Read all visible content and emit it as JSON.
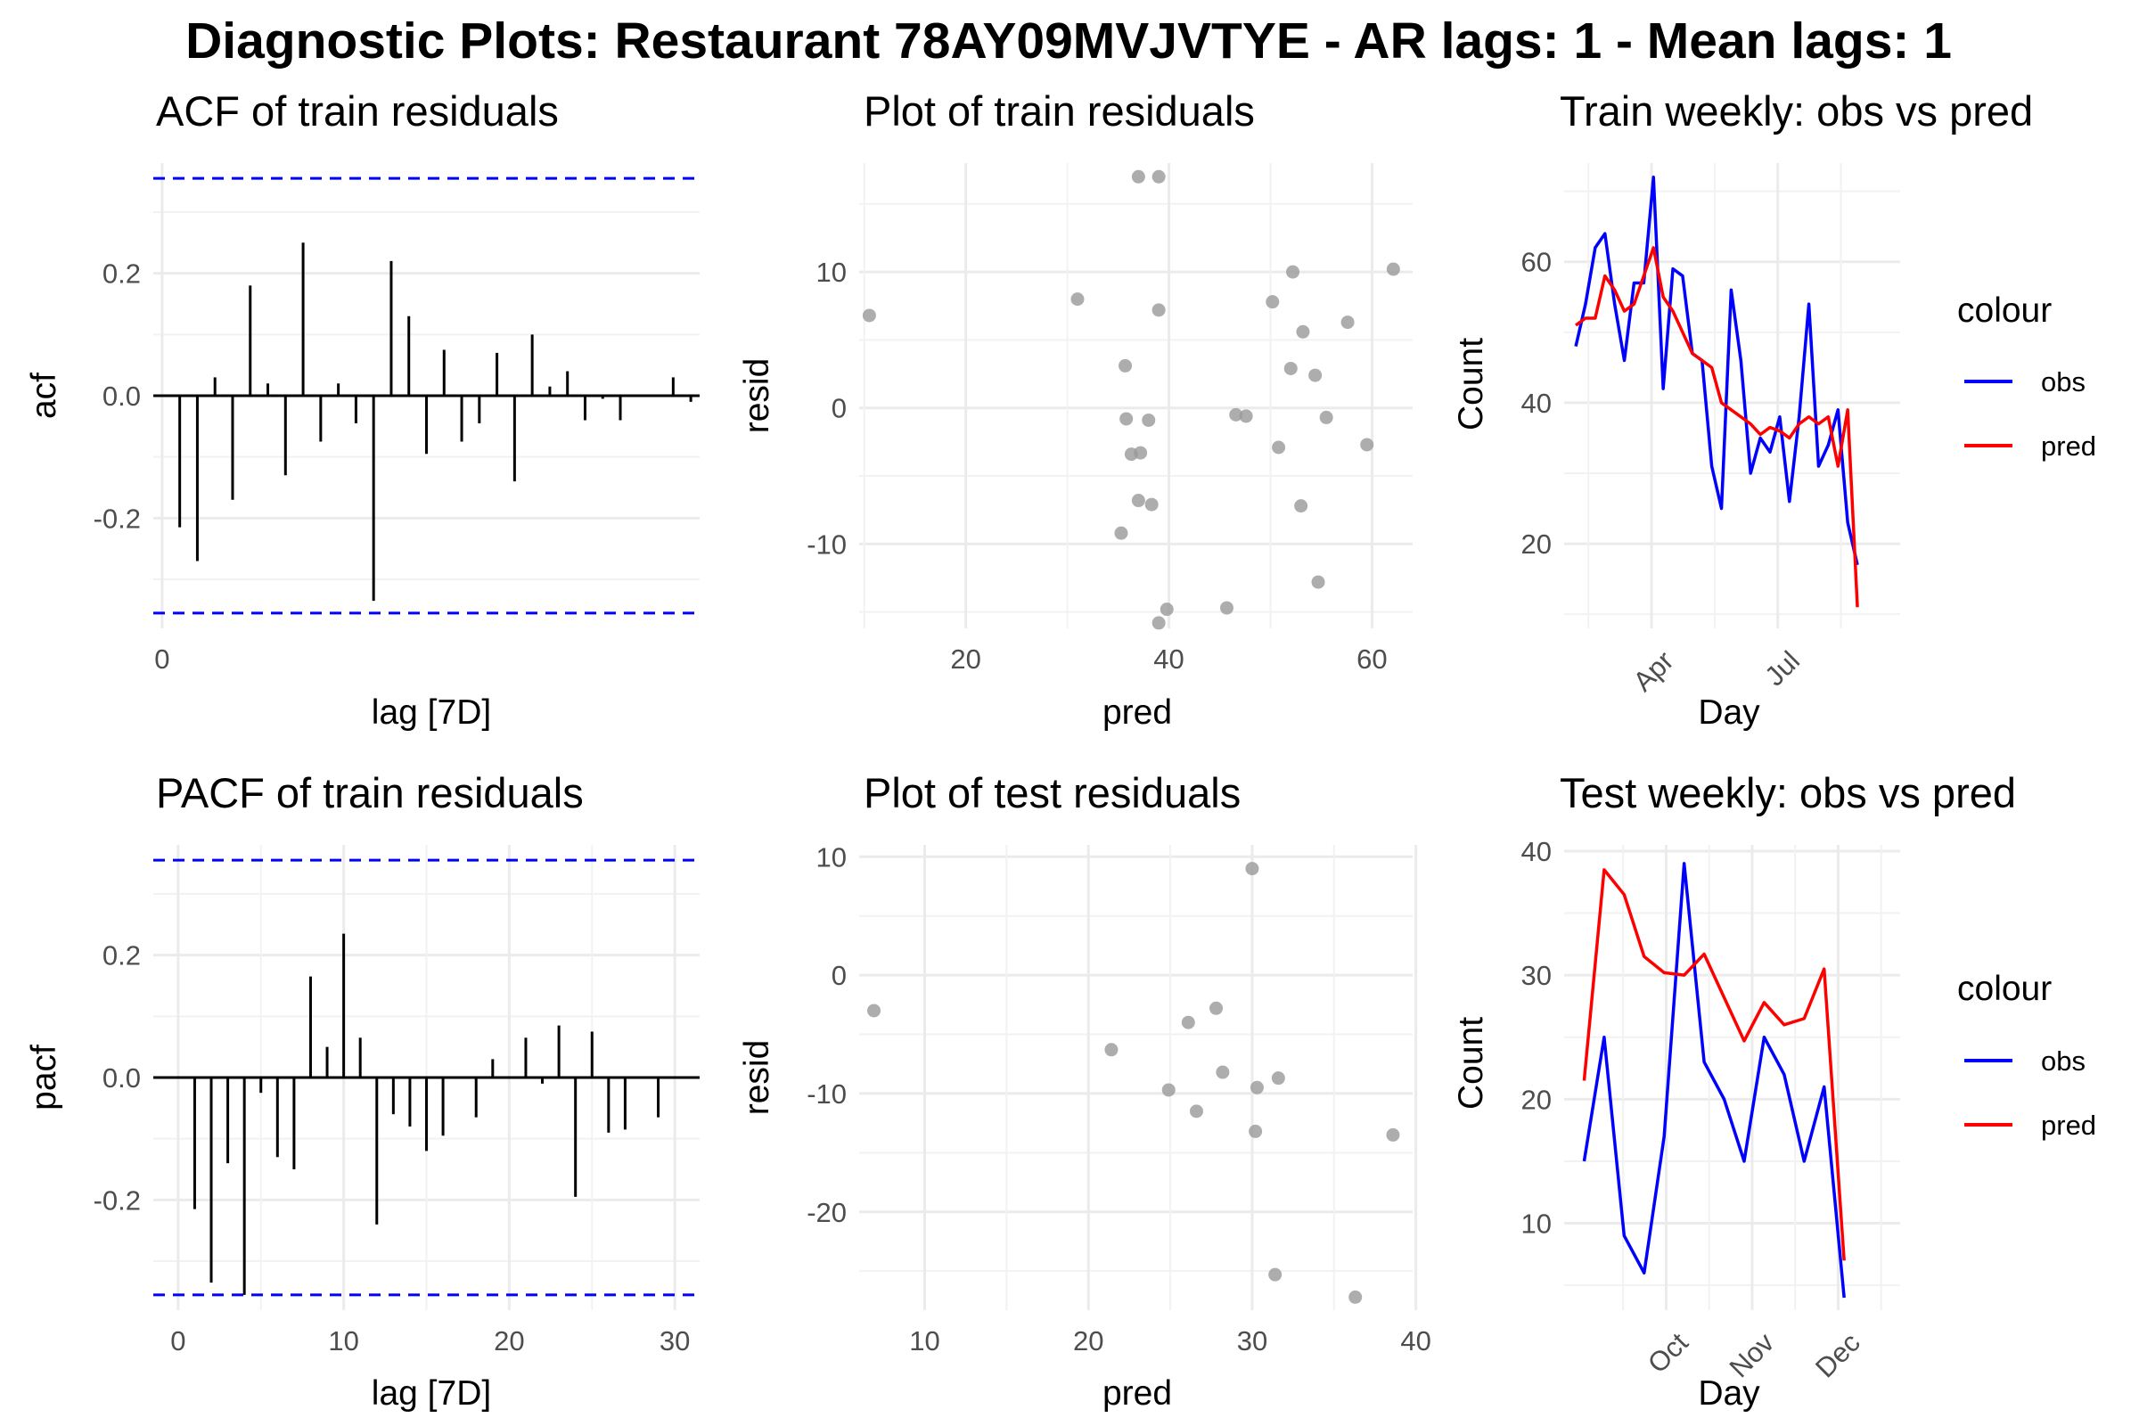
{
  "figure": {
    "title": "Diagnostic Plots: Restaurant 78AY09MVJVTYE - AR lags: 1 - Mean lags: 1"
  },
  "colors": {
    "obs": "#0000ff",
    "pred": "#ff0000",
    "bars": "#000000",
    "conf_band": "#0000ff",
    "points": "#999999"
  },
  "chart_data": [
    {
      "id": "acf",
      "type": "bar",
      "title": "ACF of train residuals",
      "xlabel": "lag [7D]",
      "ylabel": "acf",
      "xlim": [
        -0.5,
        30.5
      ],
      "ylim": [
        -0.38,
        0.38
      ],
      "x_ticks": [
        0
      ],
      "y_ticks": [
        -0.2,
        0.0,
        0.2
      ],
      "y_tick_labels": [
        "-0.2",
        "0.0",
        "0.2"
      ],
      "confidence_bounds": [
        -0.355,
        0.355
      ],
      "lags": [
        1,
        2,
        3,
        4,
        5,
        6,
        7,
        8,
        9,
        10,
        11,
        12,
        13,
        14,
        15,
        16,
        17,
        18,
        19,
        20,
        21,
        22,
        23,
        24,
        25,
        26,
        27,
        28,
        29,
        30
      ],
      "values": [
        -0.215,
        -0.27,
        0.03,
        -0.17,
        0.18,
        0.02,
        -0.13,
        0.25,
        -0.075,
        0.02,
        -0.045,
        -0.335,
        0.22,
        0.13,
        -0.095,
        0.075,
        -0.075,
        -0.045,
        0.07,
        -0.14,
        0.1,
        0.015,
        0.04,
        -0.04,
        -0.005,
        -0.04,
        0.0,
        0.0,
        0.03,
        -0.01
      ]
    },
    {
      "id": "train_resid",
      "type": "scatter",
      "title": "Plot of train residuals",
      "xlabel": "pred",
      "ylabel": "resid",
      "xlim": [
        9.5,
        64
      ],
      "ylim": [
        -16.2,
        18
      ],
      "x_ticks": [
        20,
        40,
        60
      ],
      "y_ticks": [
        -10,
        0,
        10
      ],
      "points": [
        {
          "x": 10.5,
          "y": 6.8
        },
        {
          "x": 31,
          "y": 8
        },
        {
          "x": 37,
          "y": 17
        },
        {
          "x": 39,
          "y": 17
        },
        {
          "x": 39,
          "y": 7.2
        },
        {
          "x": 35.7,
          "y": 3.1
        },
        {
          "x": 35.8,
          "y": -0.8
        },
        {
          "x": 38,
          "y": -0.9
        },
        {
          "x": 36.3,
          "y": -3.4
        },
        {
          "x": 37.2,
          "y": -3.3
        },
        {
          "x": 37,
          "y": -6.8
        },
        {
          "x": 38.3,
          "y": -7.1
        },
        {
          "x": 35.3,
          "y": -9.2
        },
        {
          "x": 39.8,
          "y": -14.8
        },
        {
          "x": 39,
          "y": -15.8
        },
        {
          "x": 45.7,
          "y": -14.7
        },
        {
          "x": 46.6,
          "y": -0.5
        },
        {
          "x": 47.6,
          "y": -0.6
        },
        {
          "x": 50.2,
          "y": 7.8
        },
        {
          "x": 52.2,
          "y": 10
        },
        {
          "x": 53.2,
          "y": 5.6
        },
        {
          "x": 52,
          "y": 2.9
        },
        {
          "x": 54.4,
          "y": 2.4
        },
        {
          "x": 55.5,
          "y": -0.7
        },
        {
          "x": 57.6,
          "y": 6.3
        },
        {
          "x": 59.5,
          "y": -2.7
        },
        {
          "x": 62.1,
          "y": 10.2
        },
        {
          "x": 50.8,
          "y": -2.9
        },
        {
          "x": 53,
          "y": -7.2
        },
        {
          "x": 54.7,
          "y": -12.8
        }
      ]
    },
    {
      "id": "train_weekly",
      "type": "line",
      "title": "Train weekly: obs vs pred",
      "xlabel": "Day",
      "ylabel": "Count",
      "xlim": [
        -1.2,
        33.4
      ],
      "ylim": [
        8,
        74
      ],
      "x_ticks": [
        7.8,
        20.8
      ],
      "x_tick_labels": [
        "Apr",
        "Jul"
      ],
      "y_ticks": [
        20,
        40,
        60
      ],
      "legend_title": "colour",
      "legend_position": "right",
      "series": [
        {
          "name": "obs",
          "values": [
            48,
            54,
            62,
            64,
            54,
            46,
            57,
            57,
            72,
            42,
            59,
            58,
            47,
            46,
            31,
            25,
            56,
            46,
            30,
            35,
            33,
            38,
            26,
            38,
            54,
            31,
            34,
            39,
            23,
            17
          ]
        },
        {
          "name": "pred",
          "values": [
            51,
            52,
            52,
            58,
            56,
            53,
            54,
            58,
            62,
            55,
            53,
            50,
            47,
            46,
            45,
            40,
            39,
            38,
            37,
            35.5,
            36.5,
            36,
            35,
            37,
            38,
            37,
            38,
            31,
            39,
            11
          ]
        }
      ]
    },
    {
      "id": "pacf",
      "type": "bar",
      "title": "PACF of train residuals",
      "xlabel": "lag [7D]",
      "ylabel": "pacf",
      "xlim": [
        -1.5,
        31.5
      ],
      "ylim": [
        -0.38,
        0.38
      ],
      "x_ticks": [
        0,
        10,
        20,
        30
      ],
      "y_ticks": [
        -0.2,
        0.0,
        0.2
      ],
      "y_tick_labels": [
        "-0.2",
        "0.0",
        "0.2"
      ],
      "confidence_bounds": [
        -0.355,
        0.355
      ],
      "lags": [
        1,
        2,
        3,
        4,
        5,
        6,
        7,
        8,
        9,
        10,
        11,
        12,
        13,
        14,
        15,
        16,
        17,
        18,
        19,
        20,
        21,
        22,
        23,
        24,
        25,
        26,
        27,
        28,
        29,
        30
      ],
      "values": [
        -0.215,
        -0.335,
        -0.14,
        -0.355,
        -0.025,
        -0.13,
        -0.15,
        0.165,
        0.05,
        0.235,
        0.065,
        -0.24,
        -0.06,
        -0.08,
        -0.12,
        -0.095,
        0.0,
        -0.065,
        0.03,
        0.0,
        0.065,
        -0.01,
        0.085,
        -0.195,
        0.075,
        -0.09,
        -0.085,
        0.0,
        -0.065,
        0.0
      ]
    },
    {
      "id": "test_resid",
      "type": "scatter",
      "title": "Plot of test residuals",
      "xlabel": "pred",
      "ylabel": "resid",
      "xlim": [
        6,
        39.8
      ],
      "ylim": [
        -28.3,
        11
      ],
      "x_ticks": [
        10,
        20,
        30,
        40
      ],
      "y_ticks": [
        -20,
        -10,
        0,
        10
      ],
      "points": [
        {
          "x": 6.9,
          "y": -3
        },
        {
          "x": 21.4,
          "y": -6.3
        },
        {
          "x": 24.9,
          "y": -9.7
        },
        {
          "x": 26.1,
          "y": -4
        },
        {
          "x": 26.6,
          "y": -11.5
        },
        {
          "x": 27.8,
          "y": -2.8
        },
        {
          "x": 28.2,
          "y": -8.2
        },
        {
          "x": 30,
          "y": 9
        },
        {
          "x": 30.3,
          "y": -9.5
        },
        {
          "x": 30.2,
          "y": -13.2
        },
        {
          "x": 31.6,
          "y": -8.7
        },
        {
          "x": 31.4,
          "y": -25.3
        },
        {
          "x": 36.3,
          "y": -27.2
        },
        {
          "x": 38.6,
          "y": -13.5
        }
      ]
    },
    {
      "id": "test_weekly",
      "type": "line",
      "title": "Test weekly: obs vs pred",
      "xlabel": "Day",
      "ylabel": "Count",
      "xlim": [
        -1,
        15.8
      ],
      "ylim": [
        3,
        40.5
      ],
      "x_ticks": [
        4.1,
        8.4,
        12.7
      ],
      "x_tick_labels": [
        "Oct",
        "Nov",
        "Dec"
      ],
      "y_ticks": [
        10,
        20,
        30,
        40
      ],
      "legend_title": "colour",
      "legend_position": "right",
      "series": [
        {
          "name": "obs",
          "values": [
            15,
            25,
            9,
            6,
            17,
            39,
            23,
            20,
            15,
            25,
            22,
            15,
            21,
            4
          ]
        },
        {
          "name": "pred",
          "values": [
            21.5,
            38.5,
            36.5,
            31.5,
            30.2,
            30,
            31.7,
            28.2,
            24.7,
            27.8,
            26,
            26.5,
            30.5,
            7
          ]
        }
      ]
    }
  ]
}
